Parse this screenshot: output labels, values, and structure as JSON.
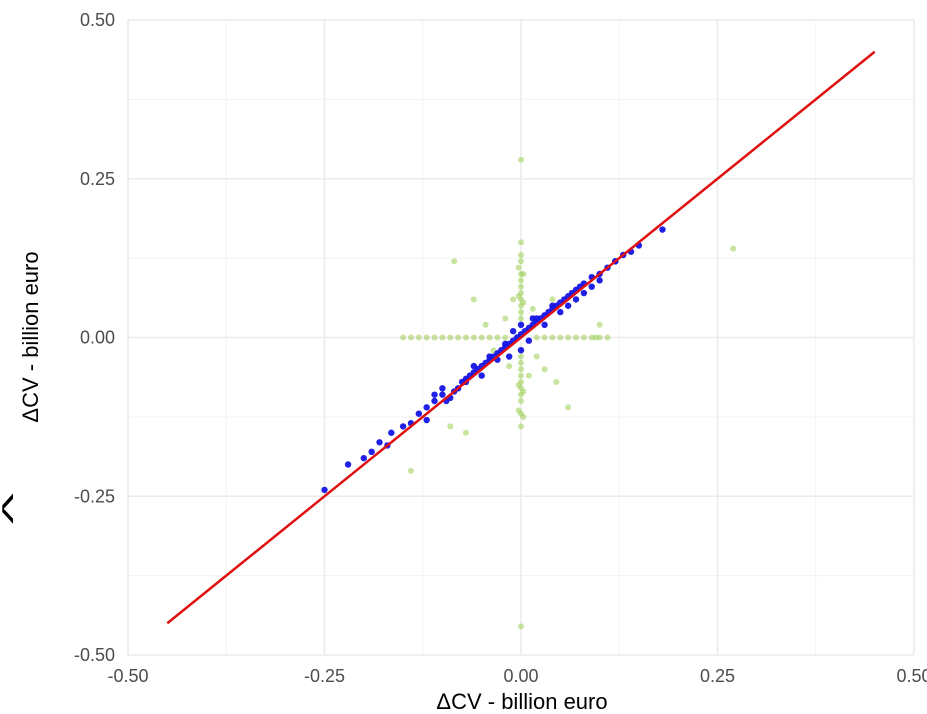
{
  "chart_data": {
    "type": "scatter",
    "title": "",
    "xlabel": "ΔCV - billion euro",
    "ylabel": "ΔCV - billion euro",
    "ylabel_hat": "^",
    "xlim": [
      -0.5,
      0.5
    ],
    "ylim": [
      -0.5,
      0.5
    ],
    "x_ticks": [
      -0.5,
      -0.25,
      0.0,
      0.25,
      0.5
    ],
    "y_ticks": [
      -0.5,
      -0.25,
      0.0,
      0.25,
      0.5
    ],
    "x_tick_labels": [
      "-0.50",
      "-0.25",
      "0.00",
      "0.25",
      "0.50"
    ],
    "y_tick_labels": [
      "-0.50",
      "-0.25",
      "0.00",
      "0.25",
      "0.50"
    ],
    "grid": true,
    "legend": "none",
    "colors": {
      "blue_points": "#1414e6",
      "green_points": "#9acd50",
      "reference_line": "#e01010",
      "grid_major": "#ebebeb",
      "grid_minor": "#f3f3f3"
    },
    "reference_line": {
      "x": [
        -0.45,
        0.45
      ],
      "y": [
        -0.45,
        0.45
      ]
    },
    "series": [
      {
        "color_key": "green_points",
        "x": [
          0.0,
          0.0,
          0.0,
          0.0,
          0.0,
          0.0,
          0.0,
          0.0,
          0.0,
          0.0,
          0.0,
          0.0,
          0.0,
          0.0,
          0.0,
          0.0,
          0.0,
          0.0,
          0.0,
          0.0,
          0.0,
          0.0,
          0.0,
          0.0,
          -0.003,
          0.003,
          -0.003,
          0.003,
          -0.003,
          0.003,
          -0.003,
          0.003,
          -0.15,
          -0.14,
          -0.13,
          -0.12,
          -0.11,
          -0.1,
          -0.09,
          -0.08,
          -0.07,
          -0.06,
          -0.05,
          -0.04,
          -0.03,
          -0.02,
          0.02,
          0.03,
          0.04,
          0.05,
          0.06,
          0.07,
          0.08,
          0.09,
          0.1,
          0.11,
          0.27,
          0.06,
          0.1,
          0.095,
          -0.07,
          -0.09,
          -0.14,
          -0.085,
          -0.06,
          0.04,
          0.045,
          0.03,
          -0.045,
          -0.035,
          0.015,
          -0.015,
          0.02,
          -0.02,
          0.01,
          -0.01
        ],
        "y": [
          0.28,
          0.15,
          0.13,
          0.12,
          0.1,
          0.09,
          0.08,
          0.07,
          0.06,
          0.05,
          0.04,
          0.03,
          -0.02,
          -0.03,
          -0.04,
          -0.05,
          -0.06,
          -0.07,
          -0.08,
          -0.09,
          -0.1,
          -0.12,
          -0.14,
          -0.455,
          0.11,
          0.1,
          0.065,
          0.055,
          -0.075,
          -0.085,
          -0.115,
          -0.125,
          0.0,
          0.0,
          0.0,
          0.0,
          0.0,
          0.0,
          0.0,
          0.0,
          0.0,
          0.0,
          0.0,
          0.0,
          0.0,
          0.0,
          0.0,
          0.0,
          0.0,
          0.0,
          0.0,
          0.0,
          0.0,
          0.0,
          0.0,
          0.0,
          0.14,
          -0.11,
          0.02,
          0.0,
          -0.15,
          -0.14,
          -0.21,
          0.12,
          0.06,
          0.06,
          -0.07,
          -0.05,
          0.02,
          -0.02,
          0.045,
          -0.045,
          -0.03,
          0.03,
          -0.06,
          0.06
        ]
      },
      {
        "color_key": "blue_points",
        "x": [
          -0.25,
          -0.22,
          -0.2,
          -0.19,
          -0.18,
          -0.17,
          -0.165,
          -0.15,
          -0.14,
          -0.13,
          -0.12,
          -0.11,
          -0.1,
          -0.09,
          -0.085,
          -0.08,
          -0.075,
          -0.07,
          -0.065,
          -0.06,
          -0.055,
          -0.05,
          -0.045,
          -0.04,
          -0.035,
          -0.03,
          -0.025,
          -0.02,
          -0.015,
          -0.01,
          -0.005,
          0.0,
          0.005,
          0.01,
          0.015,
          0.02,
          0.025,
          0.03,
          0.035,
          0.04,
          0.045,
          0.05,
          0.055,
          0.06,
          0.065,
          0.07,
          0.075,
          0.08,
          0.09,
          0.1,
          0.11,
          0.12,
          0.13,
          0.14,
          0.15,
          0.18,
          -0.11,
          -0.1,
          -0.12,
          -0.095,
          -0.07,
          -0.06,
          -0.04,
          -0.03,
          -0.02,
          0.02,
          0.03,
          0.04,
          0.05,
          0.06,
          0.07,
          0.08,
          0.09,
          0.1,
          0.12,
          -0.05,
          0.0,
          0.01,
          -0.01,
          0.0,
          0.015,
          -0.015
        ],
        "y": [
          -0.24,
          -0.2,
          -0.19,
          -0.18,
          -0.165,
          -0.17,
          -0.15,
          -0.14,
          -0.135,
          -0.12,
          -0.11,
          -0.1,
          -0.09,
          -0.095,
          -0.085,
          -0.08,
          -0.07,
          -0.065,
          -0.06,
          -0.055,
          -0.05,
          -0.045,
          -0.04,
          -0.035,
          -0.03,
          -0.025,
          -0.02,
          -0.015,
          -0.01,
          -0.005,
          0.0,
          0.005,
          0.01,
          0.015,
          0.02,
          0.025,
          0.03,
          0.035,
          0.04,
          0.045,
          0.05,
          0.055,
          0.06,
          0.065,
          0.07,
          0.075,
          0.08,
          0.085,
          0.095,
          0.1,
          0.11,
          0.12,
          0.13,
          0.135,
          0.145,
          0.17,
          -0.09,
          -0.08,
          -0.13,
          -0.1,
          -0.07,
          -0.045,
          -0.03,
          -0.035,
          -0.01,
          0.03,
          0.02,
          0.05,
          0.04,
          0.05,
          0.06,
          0.07,
          0.08,
          0.09,
          0.12,
          -0.06,
          0.02,
          -0.005,
          0.01,
          -0.02,
          0.03,
          -0.03
        ]
      }
    ]
  }
}
